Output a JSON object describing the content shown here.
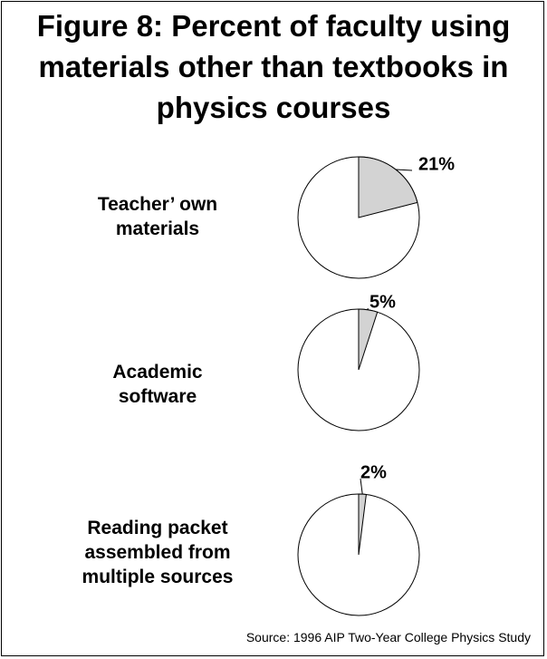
{
  "title_lines": [
    "Figure 8: Percent of faculty using",
    "materials other than textbooks in",
    "physics courses"
  ],
  "source": "Source: 1996 AIP Two-Year College Physics Study",
  "colors": {
    "slice": "#d3d3d3",
    "remainder": "#ffffff",
    "stroke": "#000000"
  },
  "chart_data": {
    "type": "pie",
    "title": "Figure 8: Percent of faculty using materials other than textbooks in physics courses",
    "series": [
      {
        "label_lines": [
          "Teacher’ own",
          "materials"
        ],
        "value": 21,
        "data_label": "21%"
      },
      {
        "label_lines": [
          "Academic",
          "software"
        ],
        "value": 5,
        "data_label": "5%"
      },
      {
        "label_lines": [
          "Reading packet",
          "assembled from",
          "multiple sources"
        ],
        "value": 2,
        "data_label": "2%"
      }
    ]
  }
}
